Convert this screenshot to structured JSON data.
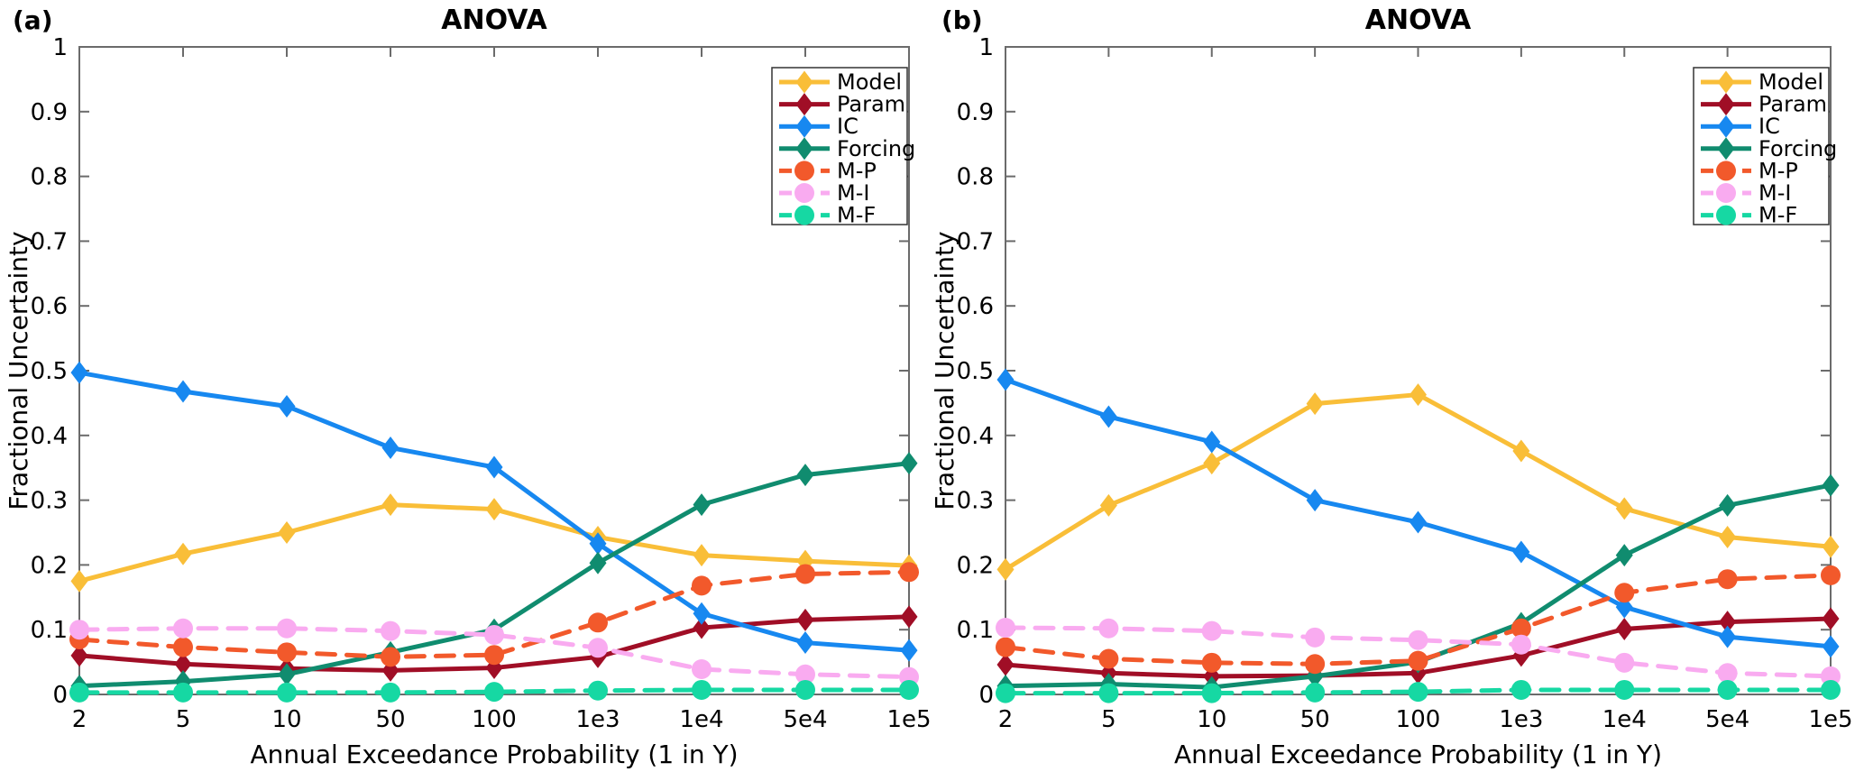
{
  "figure": {
    "background": "#ffffff",
    "spine_color": "#6b6b6b"
  },
  "chart_data": [
    {
      "type": "line",
      "panel_label": "(a)",
      "title": "ANOVA",
      "xlabel": "Annual Exceedance Probability (1 in Y)",
      "ylabel": "Fractional Uncertainty",
      "categories": [
        "2",
        "5",
        "10",
        "50",
        "100",
        "1e3",
        "1e4",
        "5e4",
        "1e5"
      ],
      "yticks": [
        "0",
        "0.1",
        "0.2",
        "0.3",
        "0.4",
        "0.5",
        "0.6",
        "0.7",
        "0.8",
        "0.9",
        "1"
      ],
      "ylim": [
        0,
        1
      ],
      "ytick_step": 0.1,
      "grid": false,
      "legend_position": "upper right",
      "series": [
        {
          "name": "Model",
          "color": "#F9BE38",
          "line": "solid",
          "marker": "diamond",
          "values": [
            0.175,
            0.217,
            0.25,
            0.293,
            0.286,
            0.243,
            0.215,
            0.206,
            0.199
          ]
        },
        {
          "name": "Param",
          "color": "#A00E26",
          "line": "solid",
          "marker": "diamond",
          "values": [
            0.06,
            0.047,
            0.04,
            0.037,
            0.041,
            0.058,
            0.103,
            0.115,
            0.12
          ]
        },
        {
          "name": "IC",
          "color": "#1788F0",
          "line": "solid",
          "marker": "diamond",
          "values": [
            0.497,
            0.468,
            0.445,
            0.381,
            0.351,
            0.233,
            0.125,
            0.08,
            0.068
          ]
        },
        {
          "name": "Forcing",
          "color": "#108C6F",
          "line": "solid",
          "marker": "diamond",
          "values": [
            0.013,
            0.02,
            0.031,
            0.065,
            0.1,
            0.203,
            0.293,
            0.339,
            0.357
          ]
        },
        {
          "name": "M-P",
          "color": "#F2592B",
          "line": "dashed",
          "marker": "circle",
          "values": [
            0.085,
            0.073,
            0.065,
            0.058,
            0.061,
            0.111,
            0.168,
            0.186,
            0.189
          ]
        },
        {
          "name": "M-I",
          "color": "#F9ABF0",
          "line": "dashed",
          "marker": "circle",
          "values": [
            0.1,
            0.102,
            0.102,
            0.098,
            0.092,
            0.072,
            0.039,
            0.031,
            0.027
          ]
        },
        {
          "name": "M-F",
          "color": "#16D8A3",
          "line": "dashed",
          "marker": "circle",
          "values": [
            0.003,
            0.003,
            0.003,
            0.003,
            0.004,
            0.006,
            0.007,
            0.007,
            0.007
          ]
        }
      ]
    },
    {
      "type": "line",
      "panel_label": "(b)",
      "title": "ANOVA",
      "xlabel": "Annual Exceedance Probability (1 in Y)",
      "ylabel": "Fractional Uncertainty",
      "categories": [
        "2",
        "5",
        "10",
        "50",
        "100",
        "1e3",
        "1e4",
        "5e4",
        "1e5"
      ],
      "yticks": [
        "0",
        "0.1",
        "0.2",
        "0.3",
        "0.4",
        "0.5",
        "0.6",
        "0.7",
        "0.8",
        "0.9",
        "1"
      ],
      "ylim": [
        0,
        1
      ],
      "ytick_step": 0.1,
      "grid": false,
      "legend_position": "upper right",
      "series": [
        {
          "name": "Model",
          "color": "#F9BE38",
          "line": "solid",
          "marker": "diamond",
          "values": [
            0.193,
            0.292,
            0.357,
            0.449,
            0.463,
            0.376,
            0.287,
            0.243,
            0.228
          ]
        },
        {
          "name": "Param",
          "color": "#A00E26",
          "line": "solid",
          "marker": "diamond",
          "values": [
            0.046,
            0.033,
            0.028,
            0.029,
            0.033,
            0.06,
            0.101,
            0.112,
            0.117
          ]
        },
        {
          "name": "IC",
          "color": "#1788F0",
          "line": "solid",
          "marker": "diamond",
          "values": [
            0.486,
            0.429,
            0.39,
            0.3,
            0.266,
            0.22,
            0.135,
            0.089,
            0.074
          ]
        },
        {
          "name": "Forcing",
          "color": "#108C6F",
          "line": "solid",
          "marker": "diamond",
          "values": [
            0.013,
            0.016,
            0.011,
            0.028,
            0.05,
            0.11,
            0.215,
            0.292,
            0.323
          ]
        },
        {
          "name": "M-P",
          "color": "#F2592B",
          "line": "dashed",
          "marker": "circle",
          "values": [
            0.073,
            0.055,
            0.049,
            0.047,
            0.052,
            0.102,
            0.157,
            0.178,
            0.184
          ]
        },
        {
          "name": "M-I",
          "color": "#F9ABF0",
          "line": "dashed",
          "marker": "circle",
          "values": [
            0.103,
            0.102,
            0.098,
            0.088,
            0.084,
            0.077,
            0.049,
            0.033,
            0.028
          ]
        },
        {
          "name": "M-F",
          "color": "#16D8A3",
          "line": "dashed",
          "marker": "circle",
          "values": [
            0.002,
            0.002,
            0.002,
            0.003,
            0.004,
            0.007,
            0.007,
            0.007,
            0.007
          ]
        }
      ]
    }
  ]
}
